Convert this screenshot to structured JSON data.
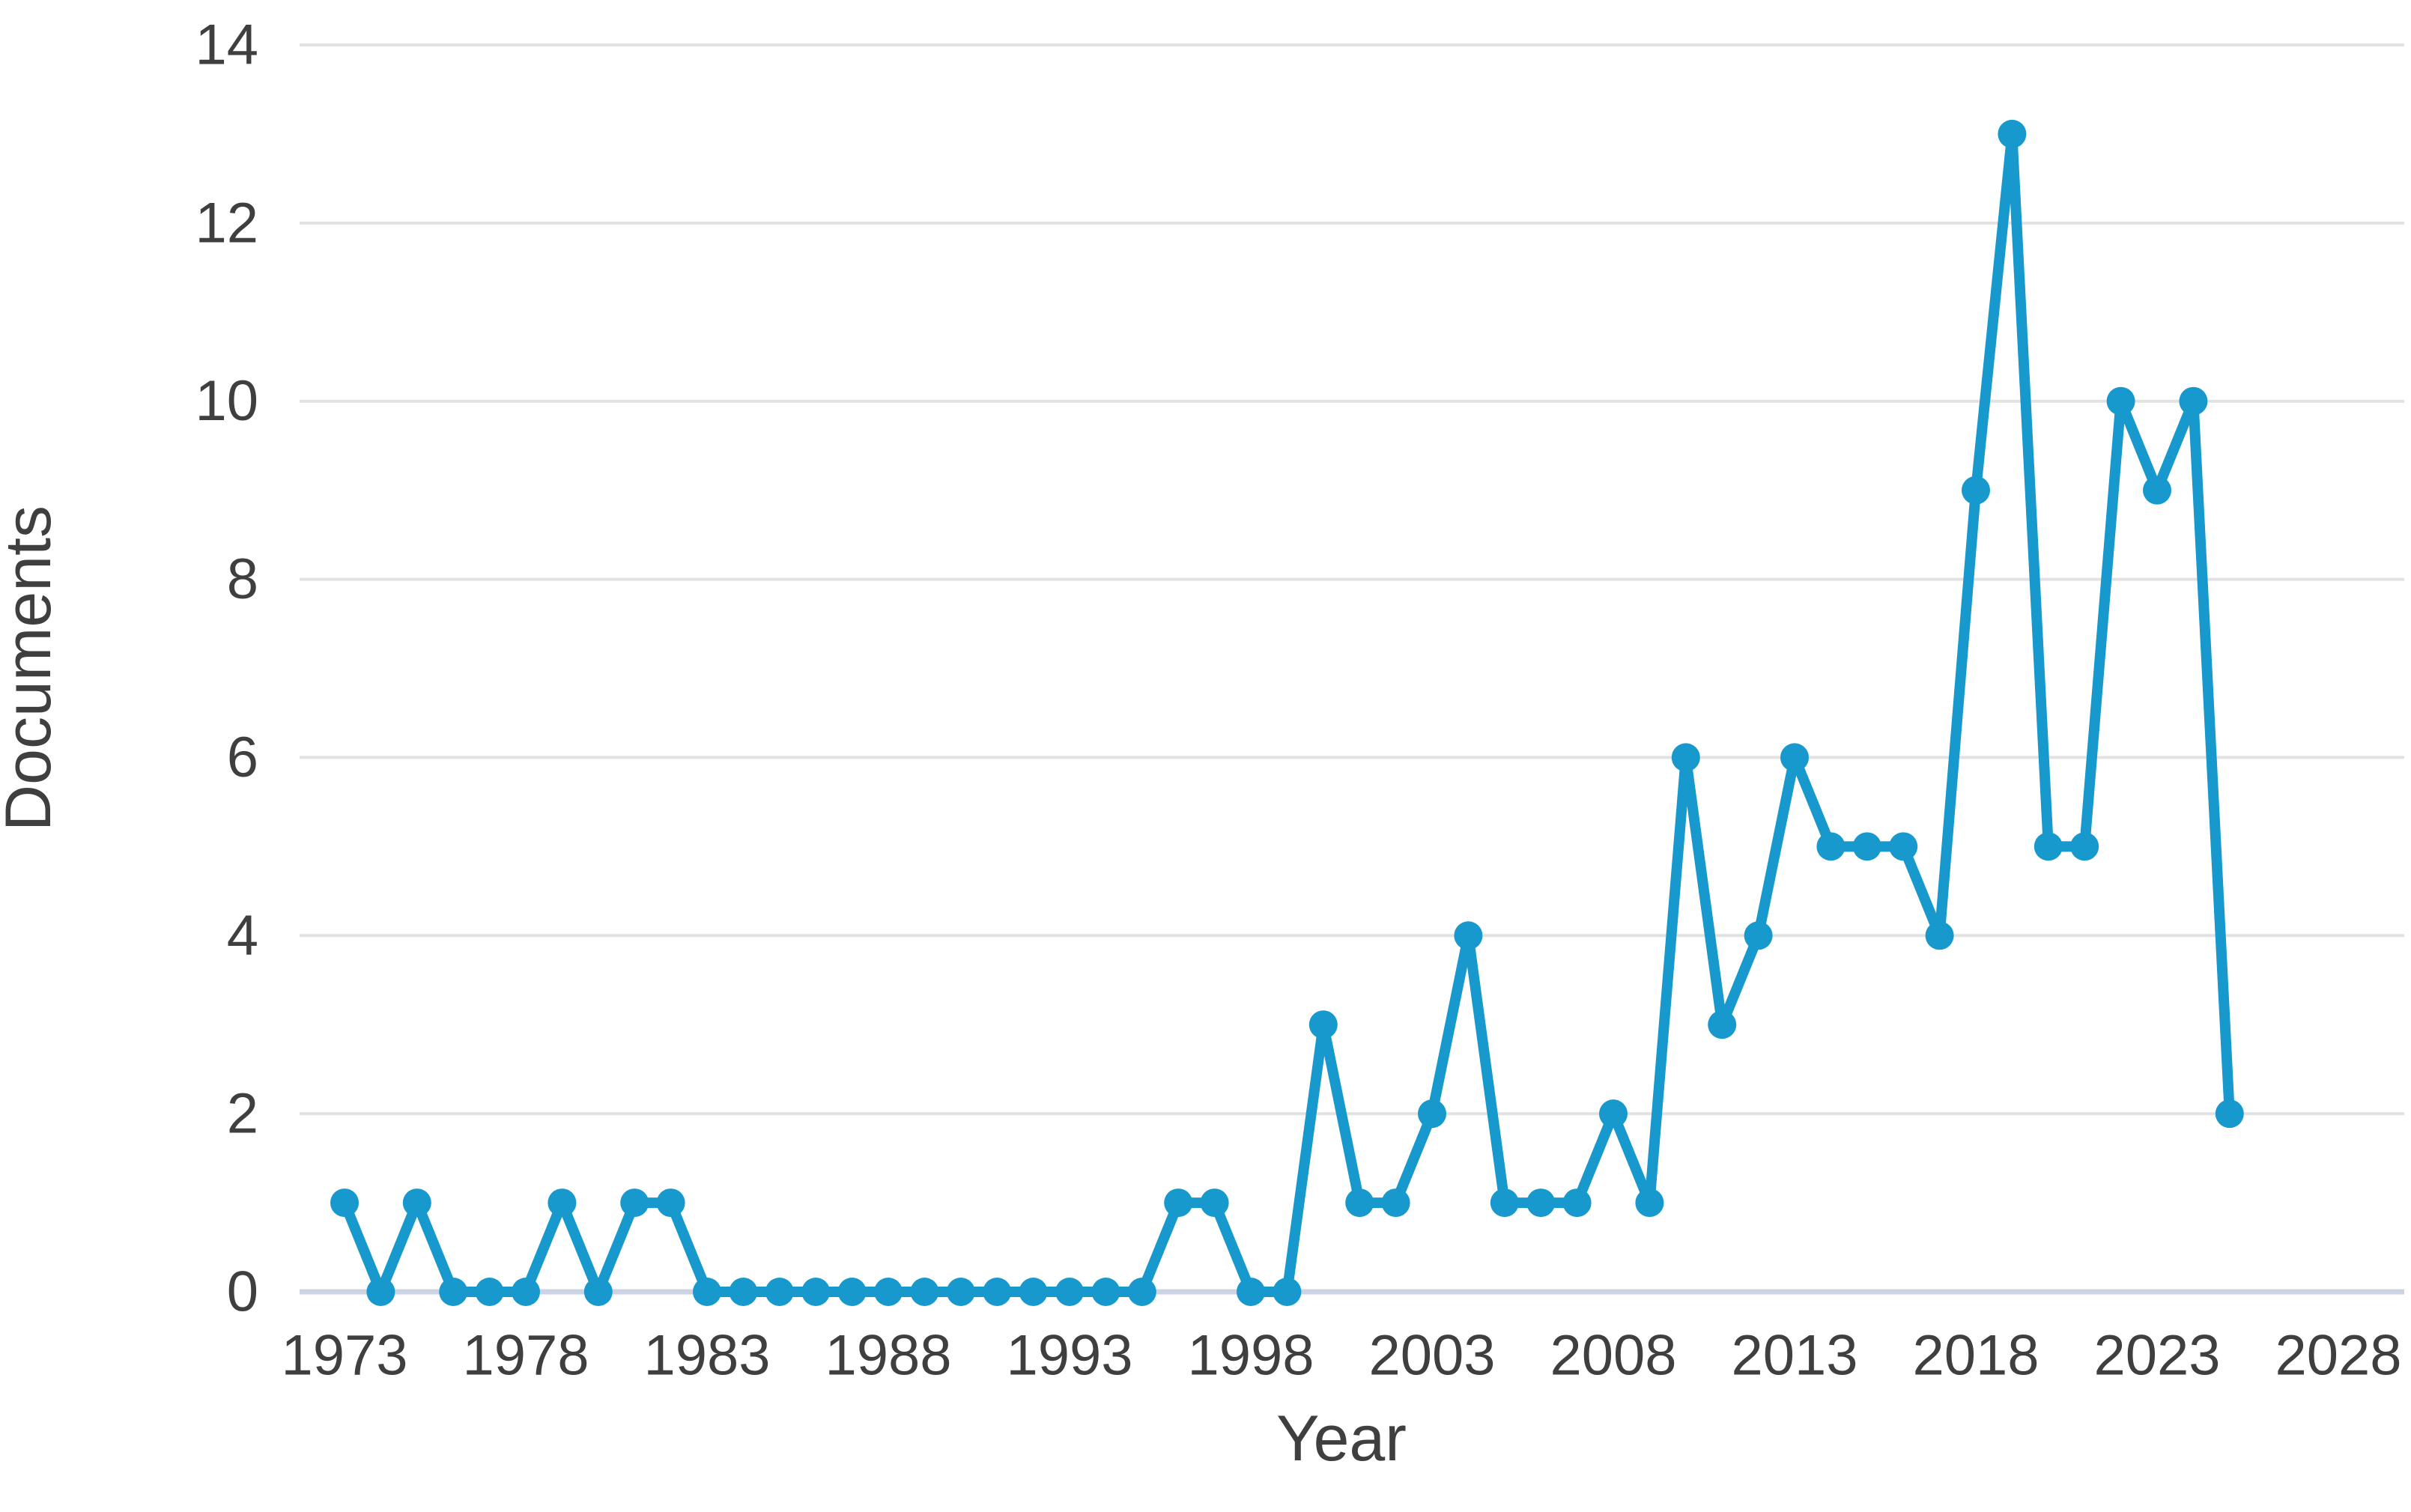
{
  "chart_data": {
    "type": "line",
    "title": "",
    "xlabel": "Year",
    "ylabel": "Documents",
    "x_ticks": [
      1973,
      1978,
      1983,
      1988,
      1993,
      1998,
      2003,
      2008,
      2013,
      2018,
      2023,
      2028
    ],
    "y_ticks": [
      0,
      2,
      4,
      6,
      8,
      10,
      12,
      14
    ],
    "xlim": [
      1973,
      2028
    ],
    "ylim": [
      0,
      14
    ],
    "grid": "horizontal",
    "legend": "none",
    "series": [
      {
        "name": "Documents",
        "x": [
          1973,
          1974,
          1975,
          1976,
          1977,
          1978,
          1979,
          1980,
          1981,
          1982,
          1983,
          1984,
          1985,
          1986,
          1987,
          1988,
          1989,
          1990,
          1991,
          1992,
          1993,
          1994,
          1995,
          1996,
          1997,
          1998,
          1999,
          2000,
          2001,
          2002,
          2003,
          2004,
          2005,
          2006,
          2007,
          2008,
          2009,
          2010,
          2011,
          2012,
          2013,
          2014,
          2015,
          2016,
          2017,
          2018,
          2019,
          2020,
          2021,
          2022,
          2023,
          2024,
          2025
        ],
        "values": [
          1,
          0,
          1,
          0,
          0,
          0,
          1,
          0,
          1,
          1,
          0,
          0,
          0,
          0,
          0,
          0,
          0,
          0,
          0,
          0,
          0,
          0,
          0,
          1,
          1,
          0,
          0,
          3,
          1,
          1,
          2,
          4,
          1,
          1,
          1,
          2,
          1,
          6,
          3,
          4,
          6,
          5,
          5,
          5,
          4,
          9,
          13,
          5,
          5,
          10,
          9,
          10,
          2
        ]
      }
    ],
    "colors": {
      "line": "#1899cd",
      "marker": "#1899cd",
      "gridline": "#e2e2e2",
      "baseline": "#ccd3e3",
      "text": "#3f3f3f"
    }
  }
}
